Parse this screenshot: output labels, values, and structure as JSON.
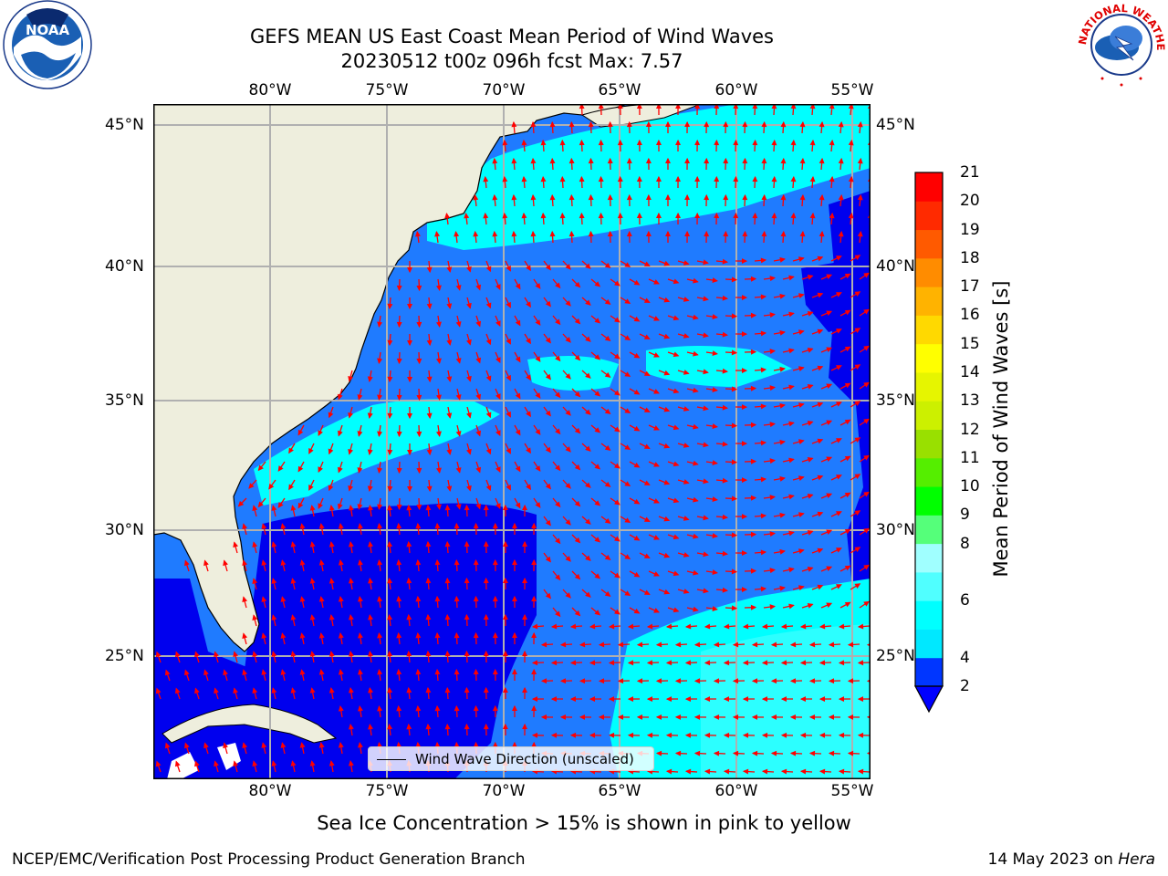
{
  "title_line1": "GEFS MEAN US East Coast Mean Period of Wind Waves",
  "title_line2": "20230512 t00z 096h fcst   Max: 7.57",
  "lon_ticks": [
    "80°W",
    "75°W",
    "70°W",
    "65°W",
    "60°W",
    "55°W"
  ],
  "lat_ticks": [
    "45°N",
    "40°N",
    "35°N",
    "30°N",
    "25°N"
  ],
  "lon_range": [
    -85,
    -54.3
  ],
  "lat_range": [
    20.5,
    46
  ],
  "legend_label": "Wind Wave Direction (unscaled)",
  "colorbar": {
    "title": "Mean Period of Wind Waves [s]",
    "tick_labels": [
      "2",
      "4",
      "6",
      "8",
      "9",
      "10",
      "11",
      "12",
      "13",
      "14",
      "15",
      "16",
      "17",
      "18",
      "19",
      "20",
      "21"
    ],
    "levels": [
      2,
      4,
      5,
      6,
      7,
      8,
      9,
      10,
      11,
      12,
      13,
      14,
      15,
      16,
      17,
      18,
      19,
      20,
      21
    ],
    "colors": [
      "#0036ff",
      "#00e8ff",
      "#00ffff",
      "#50ffff",
      "#a0ffff",
      "#55ff7a",
      "#00ff00",
      "#55ee00",
      "#99e000",
      "#ccf000",
      "#e6f500",
      "#ffff00",
      "#ffd900",
      "#ffb300",
      "#ff8c00",
      "#ff5a00",
      "#ff2a00",
      "#ff0000"
    ],
    "extend_color": "#0000ff"
  },
  "field_colors": {
    "land": "#eeeedd",
    "deep": "#0000ee",
    "mid": "#1f7bff",
    "light": "#00ffff",
    "lighter": "#40ffff",
    "arrow": "#ff0000",
    "grid": "#b0b0b0"
  },
  "note": "Sea Ice Concentration > 15% is shown in pink to yellow",
  "footer_left": "NCEP/EMC/Verification Post Processing Product Generation Branch",
  "footer_date": "14 May 2023 on ",
  "footer_host": "Hera",
  "logo_left": "NOAA",
  "logo_right": "NATIONAL WEATHER SERVICE"
}
